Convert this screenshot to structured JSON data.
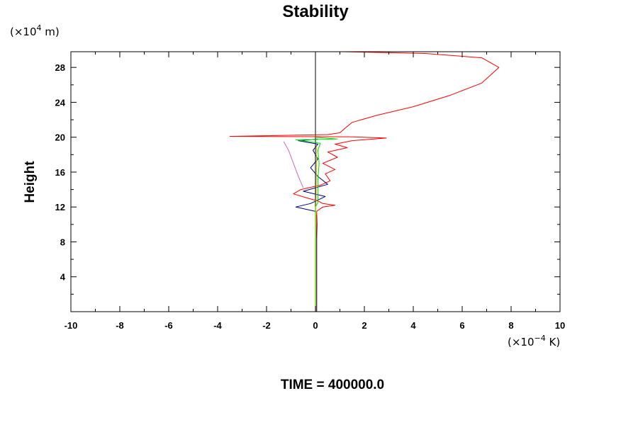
{
  "chart_data": {
    "type": "line",
    "title": "Stability",
    "ylabel": "Height",
    "y_unit": {
      "prefix": "(×10",
      "exp": "4",
      "suffix": " m)"
    },
    "x_unit": {
      "prefix": "(×10",
      "exp": "−4",
      "suffix": " K)"
    },
    "caption": "TIME = 400000.0",
    "xlim": [
      -10,
      10
    ],
    "ylim": [
      0,
      29.8
    ],
    "x_ticks": [
      "-10",
      "-8",
      "-6",
      "-4",
      "-2",
      "0",
      "2",
      "4",
      "6",
      "8",
      "10"
    ],
    "y_ticks": [
      "4",
      "8",
      "12",
      "16",
      "20",
      "24",
      "28"
    ],
    "grid": false,
    "zero_line": {
      "x": 0,
      "color": "#000000"
    },
    "series": [
      {
        "color": "#ff0000",
        "points": [
          [
            0.05,
            0
          ],
          [
            0.05,
            4
          ],
          [
            0.05,
            8
          ],
          [
            0.07,
            10
          ],
          [
            0.05,
            11.5
          ],
          [
            0.3,
            12
          ],
          [
            0.8,
            12.2
          ],
          [
            0.3,
            12.4
          ],
          [
            0.1,
            12.7
          ],
          [
            -0.3,
            13
          ],
          [
            -0.9,
            13.5
          ],
          [
            -0.6,
            14
          ],
          [
            0.2,
            14.5
          ],
          [
            0.6,
            15
          ],
          [
            0.4,
            15.8
          ],
          [
            0.8,
            16.3
          ],
          [
            0.3,
            17
          ],
          [
            0.9,
            17.7
          ],
          [
            0.5,
            18.3
          ],
          [
            1.3,
            18.8
          ],
          [
            0.8,
            19.2
          ],
          [
            1.5,
            19.6
          ],
          [
            2.9,
            19.9
          ],
          [
            1.4,
            20.05
          ],
          [
            -3.5,
            20.1
          ],
          [
            0.5,
            20.3
          ],
          [
            1.0,
            20.5
          ],
          [
            1.2,
            21
          ],
          [
            1.5,
            21.7
          ],
          [
            2.5,
            22.5
          ],
          [
            4.0,
            23.5
          ],
          [
            5.5,
            24.8
          ],
          [
            6.8,
            26.2
          ],
          [
            7.5,
            28
          ],
          [
            6.8,
            29.1
          ],
          [
            4.5,
            29.6
          ],
          [
            1.1,
            29.8
          ]
        ]
      },
      {
        "color": "#000080",
        "points": [
          [
            0.05,
            0
          ],
          [
            0.05,
            8
          ],
          [
            0.03,
            11
          ],
          [
            0,
            11.5
          ],
          [
            -0.8,
            12
          ],
          [
            -0.2,
            12.4
          ],
          [
            0.1,
            12.8
          ],
          [
            0.4,
            13.2
          ],
          [
            -0.5,
            13.8
          ],
          [
            0,
            14.2
          ],
          [
            0.5,
            14.6
          ],
          [
            0.1,
            15.5
          ],
          [
            -0.2,
            16.5
          ],
          [
            0.1,
            17.5
          ],
          [
            -0.1,
            18.5
          ],
          [
            0.1,
            19.2
          ],
          [
            -0.7,
            19.6
          ],
          [
            0.1,
            19.8
          ]
        ]
      },
      {
        "color": "#00dd00",
        "points": [
          [
            0,
            0
          ],
          [
            0,
            12
          ],
          [
            0.1,
            12.5
          ],
          [
            0.1,
            15
          ],
          [
            0.15,
            17
          ],
          [
            0.1,
            18.5
          ],
          [
            0.2,
            19.3
          ],
          [
            -0.8,
            19.7
          ],
          [
            0.9,
            19.8
          ],
          [
            0,
            20
          ]
        ]
      },
      {
        "color": "#cc66cc",
        "points": [
          [
            -0.5,
            14.2
          ],
          [
            -0.7,
            15.5
          ],
          [
            -0.9,
            17
          ],
          [
            -1.1,
            18.5
          ],
          [
            -1.3,
            19.5
          ]
        ]
      },
      {
        "color": "#cccc00",
        "points": [
          [
            0.02,
            0
          ],
          [
            0.02,
            12
          ],
          [
            0.04,
            16
          ],
          [
            0.05,
            19
          ]
        ]
      }
    ]
  }
}
